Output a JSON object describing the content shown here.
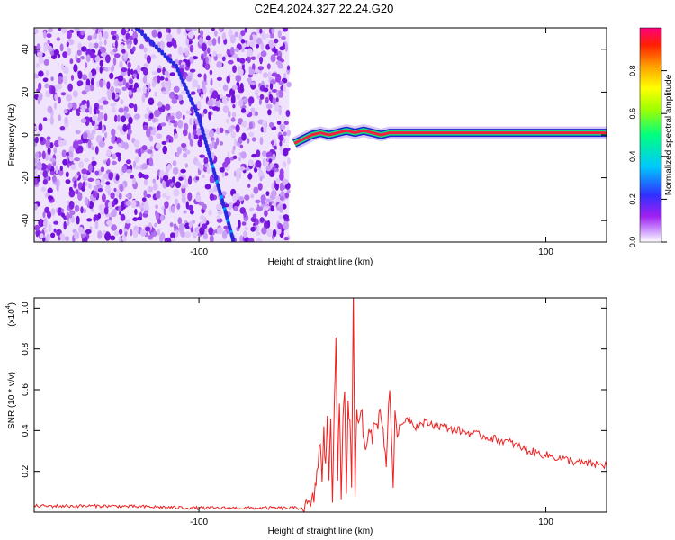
{
  "title": "C2E4.2024.327.22.24.G20",
  "chart_data": [
    {
      "type": "heatmap",
      "xlabel": "Height of straight line (km)",
      "ylabel": "Frequency (Hz)",
      "xlim": [
        -195,
        135
      ],
      "ylim": [
        -50,
        50
      ],
      "xticks": [
        -100,
        100
      ],
      "yticks": [
        -40,
        -20,
        0,
        20,
        40
      ],
      "noise_region_x": [
        -195,
        -48
      ],
      "signal_region_x": [
        -48,
        135
      ],
      "chirp_track": {
        "description_free": false,
        "x": [
          -136,
          -113,
          -100,
          -92,
          -85,
          -80
        ],
        "y": [
          50,
          32,
          8,
          -15,
          -35,
          -50
        ]
      },
      "carrier_line": {
        "x": [
          -45,
          -40,
          -35,
          -30,
          -25,
          -20,
          -15,
          -10,
          -5,
          0,
          5,
          10,
          50,
          100,
          135
        ],
        "y": [
          -4,
          -2,
          0,
          1,
          0,
          1,
          2,
          1,
          2,
          1,
          0,
          1,
          1,
          1,
          1
        ]
      },
      "colorbar": {
        "label": "Normalized spectral amplitude",
        "range": [
          0.0,
          1.0
        ],
        "ticks": [
          "0.0",
          "0.2",
          "0.4",
          "0.6",
          "0.8"
        ],
        "colors": [
          "#ffffff",
          "#a020f0",
          "#3030ff",
          "#00c8ff",
          "#00ff80",
          "#a0ff00",
          "#ffff00",
          "#ffa000",
          "#ff2000",
          "#ff0080"
        ]
      }
    },
    {
      "type": "line",
      "xlabel": "Height of straight line (km)",
      "ylabel": "SNR (10 * v/v)",
      "multiplier_label": "(x10",
      "multiplier_exp": "4",
      "xlim": [
        -195,
        135
      ],
      "ylim": [
        0,
        1.05
      ],
      "xticks": [
        -100,
        100
      ],
      "yticks": [
        0.2,
        0.4,
        0.6,
        0.8,
        1.0
      ],
      "ytick_labels": [
        "0.2",
        "0.4",
        "0.6",
        "0.8",
        "1.0"
      ],
      "color": "#ee2222",
      "series": [
        {
          "x": [
            -195,
            -150,
            -100,
            -60,
            -40,
            -35,
            -33,
            -32,
            -30,
            -29,
            -28,
            -27,
            -26,
            -25,
            -24,
            -23,
            -22,
            -21,
            -20,
            -19,
            -18,
            -17,
            -16,
            -15,
            -14,
            -13,
            -12,
            -11,
            -10,
            -9,
            -8,
            -6,
            -4,
            -2,
            0,
            2,
            5,
            8,
            10,
            12,
            13,
            15,
            20,
            25,
            30,
            40,
            50,
            60,
            70,
            80,
            90,
            100,
            110,
            120,
            135
          ],
          "values": [
            0.03,
            0.03,
            0.02,
            0.02,
            0.02,
            0.03,
            0.1,
            0.2,
            0.35,
            0.12,
            0.4,
            0.2,
            0.5,
            0.15,
            0.45,
            0.05,
            0.55,
            0.88,
            0.2,
            0.5,
            0.08,
            0.45,
            0.6,
            0.1,
            0.55,
            0.45,
            0.15,
            1.05,
            0.03,
            0.55,
            0.4,
            0.48,
            0.3,
            0.45,
            0.38,
            0.42,
            0.5,
            0.25,
            0.6,
            0.15,
            0.45,
            0.4,
            0.47,
            0.42,
            0.44,
            0.42,
            0.4,
            0.38,
            0.36,
            0.34,
            0.3,
            0.28,
            0.26,
            0.24,
            0.23
          ]
        }
      ]
    }
  ]
}
